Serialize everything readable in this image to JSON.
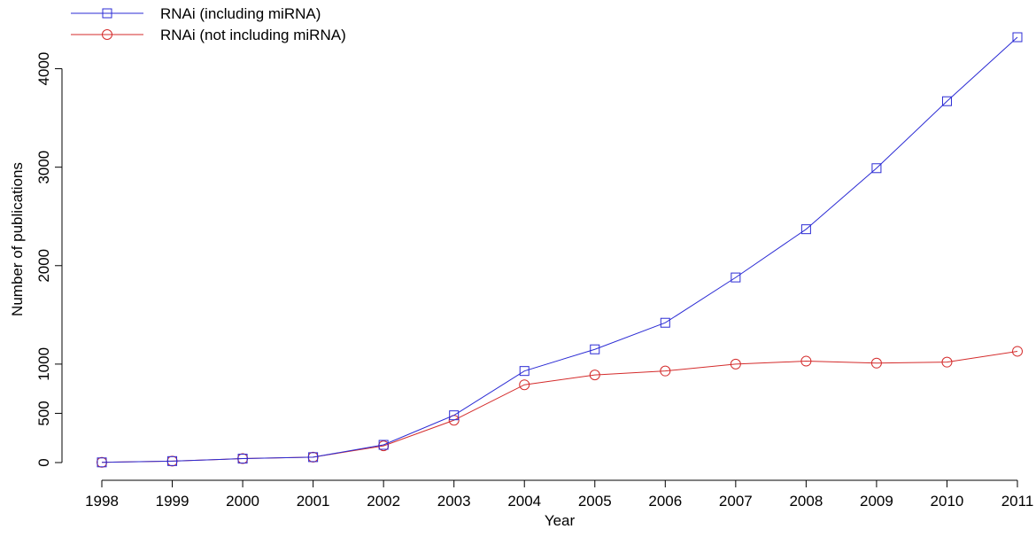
{
  "chart_data": {
    "type": "line",
    "title": "",
    "xlabel": "Year",
    "ylabel": "Number of publications",
    "x": [
      1998,
      1999,
      2000,
      2001,
      2002,
      2003,
      2004,
      2005,
      2006,
      2007,
      2008,
      2009,
      2010,
      2011
    ],
    "x_tick_labels": [
      "1998",
      "1999",
      "2000",
      "2001",
      "2002",
      "2003",
      "2004",
      "2005",
      "2006",
      "2007",
      "2008",
      "2009",
      "2010",
      "2011"
    ],
    "y_ticks": [
      0,
      500,
      1000,
      2000,
      3000,
      4000
    ],
    "y_tick_labels": [
      "0",
      "500",
      "1000",
      "2000",
      "3000",
      "4000"
    ],
    "ylim": [
      0,
      4500
    ],
    "legend_position": "top-left",
    "grid": false,
    "series": [
      {
        "name": "RNAi (including miRNA)",
        "color": "#2b2bd4",
        "marker": "square",
        "values": [
          2,
          15,
          40,
          55,
          180,
          480,
          930,
          1150,
          1420,
          1880,
          2370,
          2990,
          3670,
          4320
        ]
      },
      {
        "name": "RNAi (not including miRNA)",
        "color": "#d42b2b",
        "marker": "circle",
        "values": [
          2,
          15,
          40,
          55,
          170,
          430,
          790,
          890,
          930,
          1000,
          1030,
          1010,
          1020,
          1130
        ]
      }
    ]
  }
}
